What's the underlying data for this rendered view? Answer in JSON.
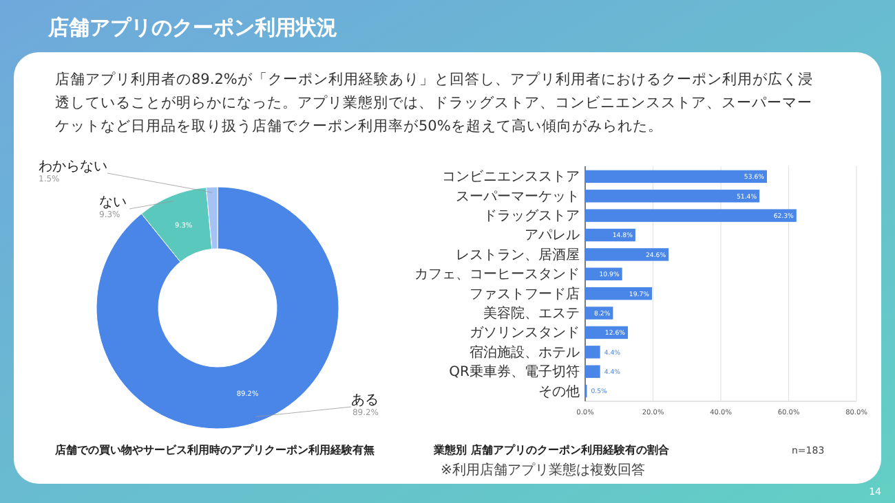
{
  "chart_data": [
    {
      "type": "donut",
      "title": "店舗での買い物やサービス利用時のアプリクーポン利用経験有無",
      "categories": [
        "ある",
        "ない",
        "わからない"
      ],
      "values": [
        89.2,
        9.3,
        1.5
      ],
      "colors": [
        "#4a86e8",
        "#5bc8bd",
        "#a4c2f4"
      ],
      "value_labels": [
        "89.2%",
        "9.3%",
        "1.5%"
      ],
      "annotations": [
        "店舗アプリのクーポン利用状況",
        "店舗アプリ利用者の89.2%が「クーポン利用経験あり」と回答し、アプリ利用者におけるクーポン利用が広く浸透していることが明らかになった。アプリ業態別では、ドラッグストア、コンビニエンスストア、スーパーマーケットなど日用品を取り扱う店舗でクーポン利用率が50%を超えて高い傾向がみられた。",
        "14"
      ]
    },
    {
      "type": "bar",
      "orientation": "horizontal",
      "title": "業態別 店舗アプリのクーポン利用経験有の割合",
      "categories": [
        "コンビニエンスストア",
        "スーパーマーケット",
        "ドラッグストア",
        "アパレル",
        "レストラン、居酒屋",
        "カフェ、コーヒースタンド",
        "ファストフード店",
        "美容院、エステ",
        "ガソリンスタンド",
        "宿泊施設、ホテル",
        "QR乗車券、電子切符",
        "その他"
      ],
      "values": [
        53.6,
        51.4,
        62.3,
        14.8,
        24.6,
        10.9,
        19.7,
        8.2,
        12.6,
        4.4,
        4.4,
        0.5
      ],
      "value_labels": [
        "53.6%",
        "51.4%",
        "62.3%",
        "14.8%",
        "24.6%",
        "10.9%",
        "19.7%",
        "8.2%",
        "12.6%",
        "4.4%",
        "4.4%",
        "0.5%"
      ],
      "color": "#4a86e8",
      "xlim": [
        0,
        80
      ],
      "xticks": [
        {
          "value": 0,
          "label": "0.0%"
        },
        {
          "value": 20,
          "label": "20.0%"
        },
        {
          "value": 40,
          "label": "40.0%"
        },
        {
          "value": 60,
          "label": "60.0%"
        },
        {
          "value": 80,
          "label": "80.0%"
        }
      ],
      "grid": "x",
      "annotations": [
        "※利用店舗アプリ業態は複数回答",
        "n=183"
      ]
    }
  ]
}
